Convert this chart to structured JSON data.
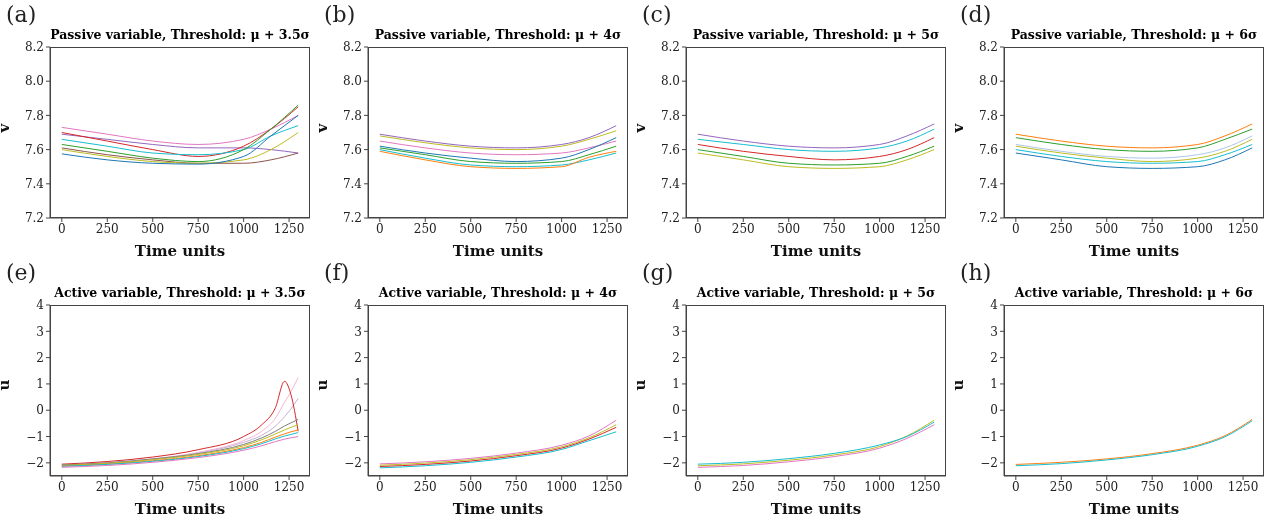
{
  "chart_data": [
    {
      "type": "line",
      "title": "Passive variable, Threshold: μ + 3.5σ",
      "xlabel": "Time units",
      "ylabel": "v",
      "annotations": [
        "(a)"
      ],
      "xlim": [
        -65,
        1365
      ],
      "xticks": [
        0,
        250,
        500,
        750,
        1000,
        1250
      ],
      "ylim": [
        7.2,
        8.2
      ],
      "yticks": [
        7.2,
        7.4,
        7.6,
        7.8,
        {
          "value": 8,
          "label": "8.0"
        },
        8.2
      ],
      "x": [
        0,
        250,
        500,
        750,
        1000,
        1150,
        1300
      ],
      "series": [
        {
          "color": "#e377c2",
          "values": [
            7.73,
            7.69,
            7.65,
            7.63,
            7.66,
            7.72,
            7.8
          ]
        },
        {
          "color": "#9467bd",
          "values": [
            7.69,
            7.66,
            7.63,
            7.61,
            7.61,
            7.6,
            7.58
          ]
        },
        {
          "color": "#d62728",
          "values": [
            7.7,
            7.65,
            7.6,
            7.56,
            7.62,
            7.72,
            7.85
          ]
        },
        {
          "color": "#17becf",
          "values": [
            7.66,
            7.62,
            7.58,
            7.57,
            7.6,
            7.68,
            7.74
          ]
        },
        {
          "color": "#2ca02c",
          "values": [
            7.63,
            7.59,
            7.55,
            7.53,
            7.6,
            7.72,
            7.86
          ]
        },
        {
          "color": "#8c564b",
          "values": [
            7.61,
            7.57,
            7.54,
            7.52,
            7.52,
            7.54,
            7.58
          ]
        },
        {
          "color": "#bcbd22",
          "values": [
            7.6,
            7.56,
            7.53,
            7.52,
            7.54,
            7.6,
            7.7
          ]
        },
        {
          "color": "#1f77b4",
          "values": [
            7.575,
            7.54,
            7.52,
            7.515,
            7.56,
            7.68,
            7.8
          ]
        }
      ]
    },
    {
      "type": "line",
      "title": "Passive variable, Threshold: μ + 4σ",
      "xlabel": "Time units",
      "ylabel": "v",
      "annotations": [
        "(b)"
      ],
      "xlim": [
        -65,
        1365
      ],
      "xticks": [
        0,
        250,
        500,
        750,
        1000,
        1250
      ],
      "ylim": [
        7.2,
        8.2
      ],
      "yticks": [
        7.2,
        7.4,
        7.6,
        7.8,
        {
          "value": 8,
          "label": "8.0"
        },
        8.2
      ],
      "x": [
        0,
        250,
        500,
        750,
        1000,
        1150,
        1300
      ],
      "series": [
        {
          "color": "#9467bd",
          "values": [
            7.69,
            7.65,
            7.62,
            7.61,
            7.63,
            7.67,
            7.74
          ]
        },
        {
          "color": "#bcbd22",
          "values": [
            7.68,
            7.64,
            7.61,
            7.6,
            7.62,
            7.66,
            7.71
          ]
        },
        {
          "color": "#e377c2",
          "values": [
            7.65,
            7.61,
            7.58,
            7.57,
            7.58,
            7.61,
            7.65
          ]
        },
        {
          "color": "#1f77b4",
          "values": [
            7.62,
            7.58,
            7.55,
            7.53,
            7.55,
            7.6,
            7.67
          ]
        },
        {
          "color": "#2ca02c",
          "values": [
            7.61,
            7.57,
            7.53,
            7.52,
            7.53,
            7.57,
            7.62
          ]
        },
        {
          "color": "#17becf",
          "values": [
            7.6,
            7.55,
            7.51,
            7.5,
            7.51,
            7.54,
            7.58
          ]
        },
        {
          "color": "#ff7f0e",
          "values": [
            7.59,
            7.54,
            7.5,
            7.49,
            7.5,
            7.555,
            7.59
          ]
        }
      ]
    },
    {
      "type": "line",
      "title": "Passive variable, Threshold: μ + 5σ",
      "xlabel": "Time units",
      "ylabel": "v",
      "annotations": [
        "(c)"
      ],
      "xlim": [
        -65,
        1365
      ],
      "xticks": [
        0,
        250,
        500,
        750,
        1000,
        1250
      ],
      "ylim": [
        7.2,
        8.2
      ],
      "yticks": [
        7.2,
        7.4,
        7.6,
        7.8,
        {
          "value": 8,
          "label": "8.0"
        },
        8.2
      ],
      "x": [
        0,
        250,
        500,
        750,
        1000,
        1150,
        1300
      ],
      "series": [
        {
          "color": "#9467bd",
          "values": [
            7.69,
            7.65,
            7.62,
            7.61,
            7.63,
            7.68,
            7.75
          ]
        },
        {
          "color": "#17becf",
          "values": [
            7.66,
            7.63,
            7.6,
            7.59,
            7.61,
            7.65,
            7.72
          ]
        },
        {
          "color": "#d62728",
          "values": [
            7.63,
            7.59,
            7.56,
            7.54,
            7.56,
            7.6,
            7.67
          ]
        },
        {
          "color": "#2ca02c",
          "values": [
            7.6,
            7.56,
            7.52,
            7.51,
            7.52,
            7.56,
            7.62
          ]
        },
        {
          "color": "#bcbd22",
          "values": [
            7.58,
            7.54,
            7.5,
            7.49,
            7.5,
            7.54,
            7.6
          ]
        }
      ]
    },
    {
      "type": "line",
      "title": "Passive variable, Threshold: μ + 6σ",
      "xlabel": "Time units",
      "ylabel": "v",
      "annotations": [
        "(d)"
      ],
      "xlim": [
        -65,
        1365
      ],
      "xticks": [
        0,
        250,
        500,
        750,
        1000,
        1250
      ],
      "ylim": [
        7.2,
        8.2
      ],
      "yticks": [
        7.2,
        7.4,
        7.6,
        7.8,
        {
          "value": 8,
          "label": "8.0"
        },
        8.2
      ],
      "x": [
        0,
        250,
        500,
        750,
        1000,
        1150,
        1300
      ],
      "series": [
        {
          "color": "#ff7f0e",
          "values": [
            7.69,
            7.65,
            7.62,
            7.61,
            7.63,
            7.68,
            7.75
          ]
        },
        {
          "color": "#2ca02c",
          "values": [
            7.67,
            7.63,
            7.6,
            7.59,
            7.61,
            7.66,
            7.72
          ]
        },
        {
          "color": "#aec7e8",
          "values": [
            7.63,
            7.59,
            7.56,
            7.55,
            7.57,
            7.61,
            7.68
          ]
        },
        {
          "color": "#bcbd22",
          "values": [
            7.62,
            7.58,
            7.55,
            7.53,
            7.55,
            7.59,
            7.66
          ]
        },
        {
          "color": "#17becf",
          "values": [
            7.6,
            7.56,
            7.53,
            7.52,
            7.53,
            7.57,
            7.63
          ]
        },
        {
          "color": "#1f77b4",
          "values": [
            7.58,
            7.54,
            7.5,
            7.49,
            7.5,
            7.54,
            7.61
          ]
        }
      ]
    },
    {
      "type": "line",
      "title": "Active variable, Threshold: μ + 3.5σ",
      "xlabel": "Time units",
      "ylabel": "u",
      "annotations": [
        "(e)"
      ],
      "xlim": [
        -65,
        1365
      ],
      "xticks": [
        0,
        250,
        500,
        750,
        1000,
        1250
      ],
      "ylim": [
        -2.5,
        4
      ],
      "yticks": [
        {
          "value": -2,
          "label": "−2"
        },
        {
          "value": -1,
          "label": "−1"
        },
        0,
        1,
        2,
        3,
        4
      ],
      "x": [
        0,
        250,
        500,
        750,
        1000,
        1100,
        1175,
        1225,
        1260,
        1300
      ],
      "series": [
        {
          "color": "#f7b6d2",
          "values": [
            -2.1,
            -2.0,
            -1.85,
            -1.6,
            -1.15,
            -0.8,
            -0.3,
            0.3,
            0.7,
            1.25
          ]
        },
        {
          "color": "#c5b0d5",
          "values": [
            -2.1,
            -2.0,
            -1.86,
            -1.63,
            -1.22,
            -0.95,
            -0.6,
            -0.25,
            0.05,
            0.45
          ]
        },
        {
          "color": "#d62728",
          "values": [
            -2.05,
            -1.95,
            -1.78,
            -1.5,
            -1.0,
            -0.55,
            0.1,
            1.1,
            0.6,
            -0.8
          ]
        },
        {
          "color": "#7f7f7f",
          "values": [
            -2.08,
            -2.0,
            -1.85,
            -1.65,
            -1.3,
            -1.05,
            -0.8,
            -0.6,
            -0.48,
            -0.35
          ]
        },
        {
          "color": "#bcbd22",
          "values": [
            -2.1,
            -2.02,
            -1.88,
            -1.68,
            -1.35,
            -1.12,
            -0.9,
            -0.75,
            -0.65,
            -0.55
          ]
        },
        {
          "color": "#ff7f0e",
          "values": [
            -2.12,
            -2.05,
            -1.92,
            -1.73,
            -1.42,
            -1.22,
            -1.02,
            -0.9,
            -0.82,
            -0.75
          ]
        },
        {
          "color": "#17becf",
          "values": [
            -2.13,
            -2.06,
            -1.94,
            -1.76,
            -1.46,
            -1.27,
            -1.09,
            -0.98,
            -0.92,
            -0.85
          ]
        },
        {
          "color": "#e377c2",
          "values": [
            -2.17,
            -2.1,
            -1.98,
            -1.8,
            -1.52,
            -1.35,
            -1.19,
            -1.1,
            -1.05,
            -1.0
          ]
        }
      ]
    },
    {
      "type": "line",
      "title": "Active variable, Threshold: μ + 4σ",
      "xlabel": "Time units",
      "ylabel": "u",
      "annotations": [
        "(f)"
      ],
      "xlim": [
        -65,
        1365
      ],
      "xticks": [
        0,
        250,
        500,
        750,
        1000,
        1250
      ],
      "ylim": [
        -2.5,
        4
      ],
      "yticks": [
        {
          "value": -2,
          "label": "−2"
        },
        {
          "value": -1,
          "label": "−1"
        },
        0,
        1,
        2,
        3,
        4
      ],
      "x": [
        0,
        250,
        500,
        750,
        1000,
        1150,
        1300
      ],
      "series": [
        {
          "color": "#e377c2",
          "values": [
            -2.04,
            -1.96,
            -1.83,
            -1.63,
            -1.33,
            -0.98,
            -0.38
          ]
        },
        {
          "color": "#bcbd22",
          "values": [
            -2.09,
            -2.01,
            -1.88,
            -1.68,
            -1.39,
            -1.05,
            -0.55
          ]
        },
        {
          "color": "#d62728",
          "values": [
            -2.14,
            -2.06,
            -1.93,
            -1.73,
            -1.44,
            -1.1,
            -0.65
          ]
        },
        {
          "color": "#17becf",
          "values": [
            -2.19,
            -2.11,
            -1.98,
            -1.78,
            -1.49,
            -1.16,
            -0.82
          ]
        }
      ]
    },
    {
      "type": "line",
      "title": "Active variable, Threshold: μ + 5σ",
      "xlabel": "Time units",
      "ylabel": "u",
      "annotations": [
        "(g)"
      ],
      "xlim": [
        -65,
        1365
      ],
      "xticks": [
        0,
        250,
        500,
        750,
        1000,
        1250
      ],
      "ylim": [
        -2.5,
        4
      ],
      "yticks": [
        {
          "value": -2,
          "label": "−2"
        },
        {
          "value": -1,
          "label": "−1"
        },
        0,
        1,
        2,
        3,
        4
      ],
      "x": [
        0,
        250,
        500,
        750,
        1000,
        1150,
        1300
      ],
      "series": [
        {
          "color": "#bcbd22",
          "values": [
            -2.11,
            -2.04,
            -1.9,
            -1.7,
            -1.38,
            -0.98,
            -0.38
          ]
        },
        {
          "color": "#17becf",
          "values": [
            -2.05,
            -1.98,
            -1.84,
            -1.64,
            -1.32,
            -1.0,
            -0.45
          ]
        },
        {
          "color": "#e377c2",
          "values": [
            -2.17,
            -2.1,
            -1.96,
            -1.76,
            -1.44,
            -1.07,
            -0.55
          ]
        }
      ]
    },
    {
      "type": "line",
      "title": "Active variable, Threshold: μ + 6σ",
      "xlabel": "Time units",
      "ylabel": "u",
      "annotations": [
        "(h)"
      ],
      "xlim": [
        -65,
        1365
      ],
      "xticks": [
        0,
        250,
        500,
        750,
        1000,
        1250
      ],
      "ylim": [
        -2.5,
        4
      ],
      "yticks": [
        {
          "value": -2,
          "label": "−2"
        },
        {
          "value": -1,
          "label": "−1"
        },
        0,
        1,
        2,
        3,
        4
      ],
      "x": [
        0,
        250,
        500,
        750,
        1000,
        1150,
        1300
      ],
      "series": [
        {
          "color": "#ff7f0e",
          "values": [
            -2.06,
            -1.98,
            -1.85,
            -1.65,
            -1.33,
            -0.97,
            -0.35
          ]
        },
        {
          "color": "#17becf",
          "values": [
            -2.11,
            -2.03,
            -1.89,
            -1.69,
            -1.37,
            -1.01,
            -0.4
          ]
        }
      ]
    }
  ]
}
